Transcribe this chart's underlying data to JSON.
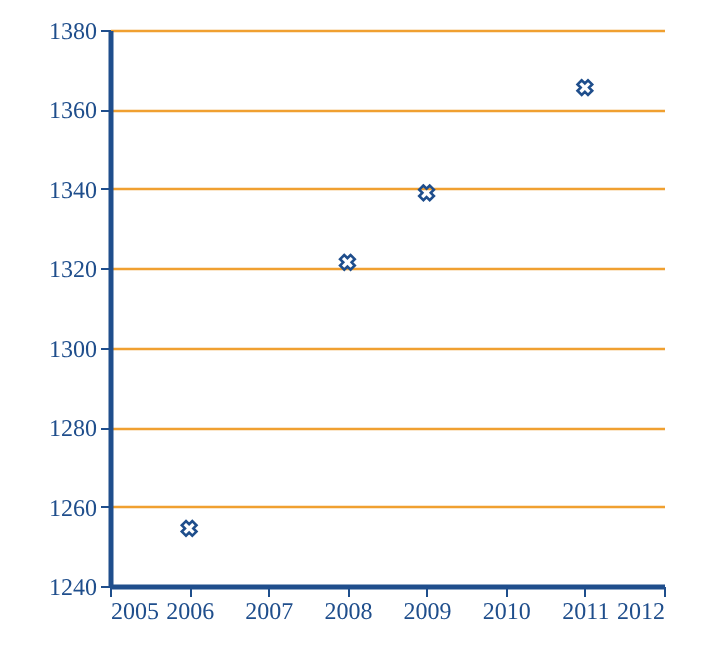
{
  "chart_data": {
    "type": "scatter",
    "x": [
      2006,
      2008,
      2009,
      2011
    ],
    "series": [
      {
        "color": "#1f4e8c",
        "values": [
          1254.5,
          1321.5,
          1339,
          1365.5
        ]
      }
    ],
    "xlim": [
      2005,
      2012
    ],
    "xticks": [
      2005,
      2006,
      2007,
      2008,
      2009,
      2010,
      2011,
      2012
    ],
    "ylim": [
      1240,
      1380
    ],
    "yticks": [
      1240,
      1260,
      1280,
      1300,
      1320,
      1340,
      1360,
      1380
    ],
    "grid": "y",
    "marker": "cross",
    "legend": false
  }
}
